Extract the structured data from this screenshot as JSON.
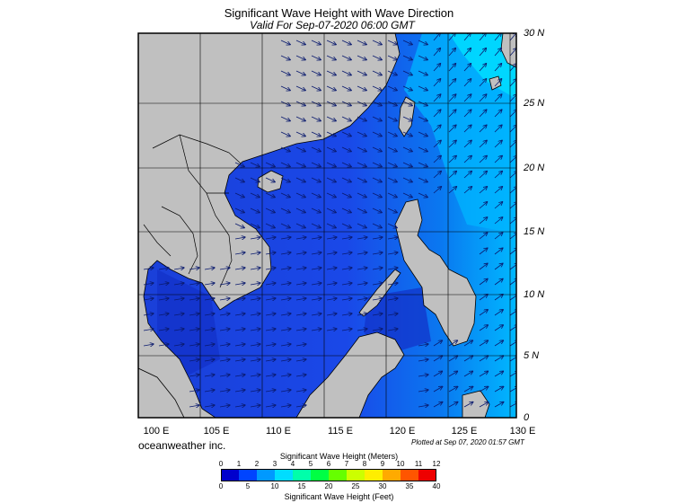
{
  "title": "Significant Wave Height with Wave Direction",
  "subtitle": "Valid For Sep-07-2020 06:00 GMT",
  "lat_labels": [
    "30 N",
    "25 N",
    "20 N",
    "15 N",
    "10 N",
    "5 N",
    "0"
  ],
  "lon_labels": [
    "100 E",
    "105 E",
    "110 E",
    "115 E",
    "120 E",
    "125 E",
    "130 E"
  ],
  "credit": "oceanweather inc.",
  "plotted": "Plotted at Sep 07, 2020 01:57 GMT",
  "colorbar": {
    "title_meters": "Significant Wave Height (Meters)",
    "title_feet": "Significant Wave Height (Feet)",
    "meters_ticks": [
      "0",
      "1",
      "2",
      "3",
      "4",
      "5",
      "6",
      "7",
      "8",
      "9",
      "10",
      "11",
      "12"
    ],
    "feet_ticks": [
      "0",
      "5",
      "10",
      "15",
      "20",
      "25",
      "30",
      "35",
      "40"
    ],
    "colors": [
      "#0000cc",
      "#0044ff",
      "#0099ff",
      "#00ddff",
      "#00ffaa",
      "#00ff44",
      "#66ff00",
      "#ccff00",
      "#ffee00",
      "#ffaa00",
      "#ff5500",
      "#ee0000"
    ]
  },
  "colors": {
    "land": "#c0c0c0",
    "ocean_low": "#1e4fe0",
    "ocean_high": "#00d4ff",
    "grid": "#000000"
  }
}
